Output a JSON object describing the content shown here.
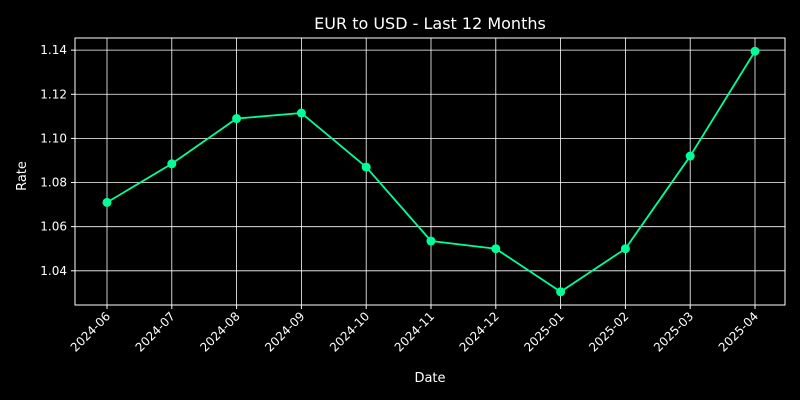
{
  "chart_data": {
    "type": "line",
    "title": "EUR to USD - Last 12 Months",
    "xlabel": "Date",
    "ylabel": "Rate",
    "categories": [
      "2024-06",
      "2024-07",
      "2024-08",
      "2024-09",
      "2024-10",
      "2024-11",
      "2024-12",
      "2025-01",
      "2025-02",
      "2025-03",
      "2025-04"
    ],
    "series": [
      {
        "values": [
          1.071,
          1.0885,
          1.109,
          1.1115,
          1.087,
          1.0535,
          1.05,
          1.0305,
          1.05,
          1.092,
          1.1395
        ]
      }
    ],
    "yticks": [
      1.04,
      1.06,
      1.08,
      1.1,
      1.12,
      1.14
    ],
    "ytick_labels": [
      "1.04",
      "1.06",
      "1.08",
      "1.10",
      "1.12",
      "1.14"
    ],
    "ylim": [
      1.0245,
      1.1455
    ],
    "grid": true,
    "colors": {
      "background": "#000000",
      "line": "#00ff99",
      "grid": "#ffffff",
      "text": "#ffffff"
    }
  }
}
